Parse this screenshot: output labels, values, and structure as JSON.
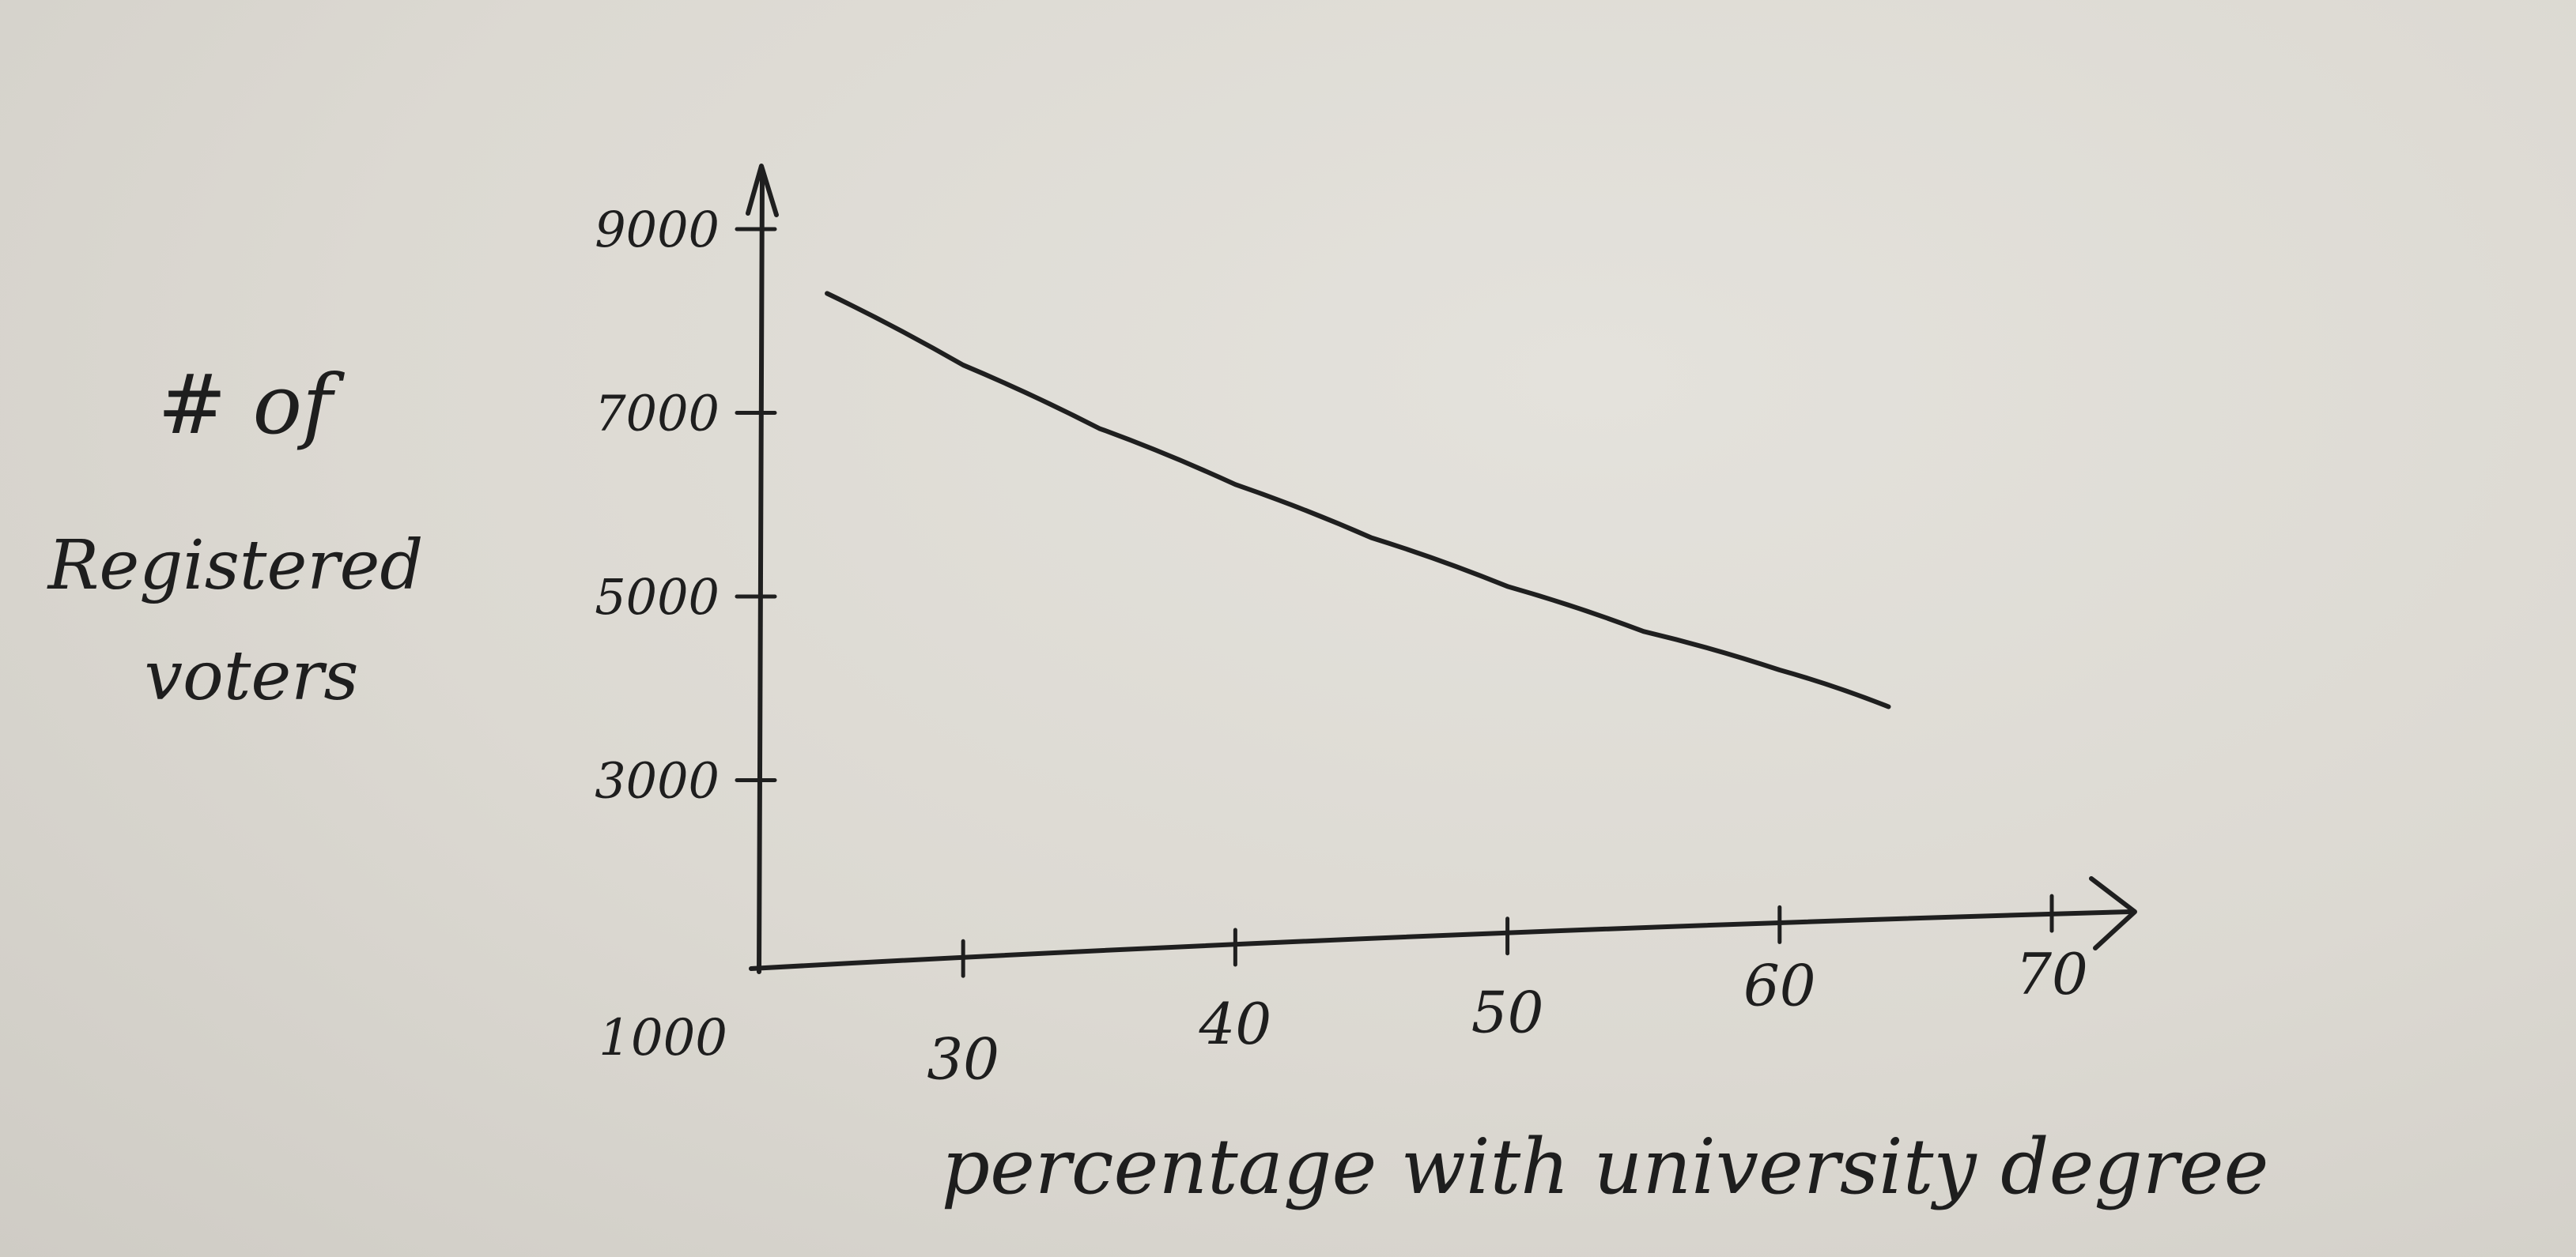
{
  "chart_data": {
    "type": "line",
    "title": "",
    "xlabel": "percentage with university degree",
    "ylabel_lines": [
      "# of",
      "Registered",
      "voters"
    ],
    "x_ticks": [
      30,
      40,
      50,
      60,
      70
    ],
    "y_ticks": [
      1000,
      3000,
      5000,
      7000,
      9000
    ],
    "xlim": [
      22.5,
      70
    ],
    "ylim": [
      1000,
      9000
    ],
    "grid": false,
    "series": [
      {
        "x": [
          25,
          30,
          35,
          40,
          45,
          50,
          55,
          60,
          64
        ],
        "values": [
          8300,
          7520,
          6830,
          6220,
          5640,
          5110,
          4620,
          4200,
          3800
        ]
      }
    ],
    "colors": {
      "ink": "#1f1f1f",
      "paper": "#dcd9d2"
    }
  }
}
